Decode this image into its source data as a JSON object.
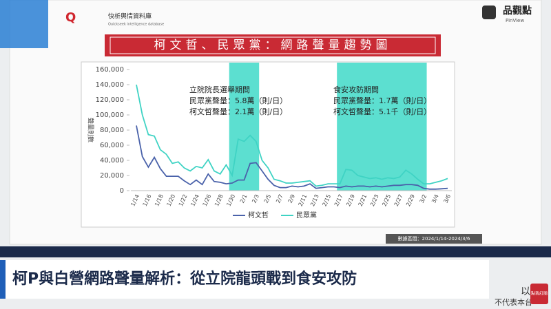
{
  "header": {
    "brand_cn": "快析輿情資料庫",
    "brand_en": "Quickseek intelligence database",
    "logo": "品觀點",
    "logo_en": "PinView"
  },
  "chart_data": {
    "type": "line",
    "title": "柯文哲、民眾黨：網路聲量趨勢圖",
    "y_label": "聲量則數",
    "categories": [
      "1/14",
      null,
      "1/16",
      null,
      "1/18",
      null,
      "1/20",
      null,
      "1/22",
      null,
      "1/24",
      null,
      "1/26",
      null,
      "1/28",
      null,
      "1/30",
      null,
      "2/1",
      null,
      "2/3",
      null,
      "2/5",
      null,
      "2/7",
      null,
      "2/9",
      null,
      "2/11",
      null,
      "2/13",
      null,
      "2/15",
      null,
      "2/17",
      null,
      "2/19",
      null,
      "2/21",
      null,
      "2/23",
      null,
      "2/25",
      null,
      "2/27",
      null,
      "2/29",
      null,
      "3/2",
      null,
      "3/4",
      null,
      "3/6"
    ],
    "series": [
      {
        "name": "柯文哲",
        "color": "#4a62aa",
        "values": [
          86000,
          45000,
          31000,
          44000,
          29000,
          19000,
          19000,
          19000,
          13000,
          8000,
          14000,
          8000,
          22000,
          12000,
          11000,
          9000,
          10000,
          14000,
          14000,
          36000,
          37000,
          26000,
          15000,
          7000,
          4000,
          4000,
          6000,
          5000,
          6000,
          9000,
          3000,
          4000,
          5000,
          5000,
          4000,
          6000,
          5000,
          6000,
          6000,
          5000,
          6000,
          5000,
          6000,
          7000,
          7000,
          8000,
          8000,
          7000,
          3000,
          2000,
          2000,
          2500,
          3000
        ]
      },
      {
        "name": "民眾黨",
        "color": "#3fd3c4",
        "values": [
          140000,
          100000,
          74000,
          72000,
          54000,
          48000,
          36000,
          38000,
          30000,
          26000,
          32000,
          30000,
          41000,
          26000,
          22000,
          34000,
          20000,
          68000,
          65000,
          73000,
          65000,
          40000,
          30000,
          15000,
          13000,
          10000,
          10000,
          11000,
          12000,
          13000,
          6000,
          7000,
          9000,
          9000,
          9000,
          28000,
          27000,
          20000,
          18000,
          16000,
          17000,
          15000,
          17000,
          16000,
          18000,
          27000,
          22000,
          15000,
          9000,
          9000,
          11000,
          13000,
          16000
        ]
      }
    ],
    "ylim": [
      0,
      160000
    ],
    "yticks": [
      0,
      {
        "value": 20000,
        "label": "20,000"
      },
      {
        "value": 40000,
        "label": "40,000"
      },
      {
        "value": 60000,
        "label": "60,000"
      },
      {
        "value": 80000,
        "label": "80,000"
      },
      {
        "value": 100000,
        "label": "100,000"
      },
      {
        "value": 120000,
        "label": "120,000"
      },
      {
        "value": 140000,
        "label": "140,000"
      },
      {
        "value": 160000,
        "label": "160,000"
      }
    ],
    "highlight_color": "#3fd9c8",
    "highlights": [
      {
        "start": "1/30",
        "end": "2/3",
        "lines": [
          "立院院長選舉期間",
          "民眾黨聲量：5.8萬（則/日）",
          "柯文哲聲量：2.1萬（則/日）"
        ]
      },
      {
        "start": "2/17",
        "end": "3/2",
        "lines": [
          "食安攻防期間",
          "民眾黨聲量：1.7萬（則/日）",
          "柯文哲聲量：5.1千（則/日）"
        ]
      }
    ],
    "source": "數據區間：2024/1/14-2024/3/6"
  },
  "footer": {
    "headline": "柯P與白營網路聲量解析：從立院龍頭戰到食安攻防",
    "corner_1": "以",
    "corner_2": "不代表本台",
    "subscribe": "點我訂閱"
  }
}
